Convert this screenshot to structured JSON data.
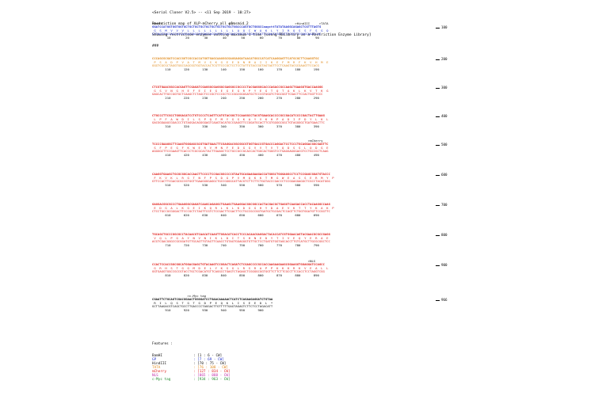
{
  "header": {
    "lines": [
      "<Serial Cloner V2.5> -- <11 Sep 2019 - 10:27>",
      "Restriction map of XLP-mCherry_all plasmid_2",
      "Showing restriction enzymes cutting maximum 1 time [using RELibrary as a Restriction Enzyme Library]",
      "###"
    ]
  },
  "blocks": [
    {
      "labels": ">BamHI                                   >GP                                 >HindIII     >TATA",
      "top": "GGATCCATGGTGGTGGTGCTGCTGCTGCTGCTGCTGCTGCTGCTGGCCCAGTGCTGGGCCaagcttTATATAAGGCAGAGCTCGTTTAGTG",
      "aa": " G  S  M  V  V  V  L  L  L  L  L  L  L  L  L  A  Q  C  W  A  K  L  Y  I  R  Q  S  S  F  S  G  Q",
      "bottom": "CCTAGGTACCACCACCACGACGACGACGACGACGACGACGACGACCGGGTCACGACCCGTTCGAATATATATTCCGTCTCGAGCAAATCAC",
      "ticks": "        10        20        30        40        50        60        70        80        90",
      "end": "100",
      "colors": [
        "c-blue",
        "c-orange"
      ]
    },
    {
      "labels": "",
      "top": "CCCAGCGCGATCCACCGGTCGCCACCATGGTGAGCAAGGGCGAGGAGGATAACATGGCCATCATCAAGGAGTTCATGCGCTTCAAGGTGC",
      "aa": " P  S  A  D  P  V  A  T  M  V  S  K  G  E  E  D  N  M  A  I  I  K  E  F  M  R  F  K  V  H  M  E",
      "bottom": "GGGTCGCGCTAGGTGGCCAGCGGTGGTACCACTCGTTCCCGCTCCTCCTATTGTACCGGTAGTAGTTCCTCAAGTACGCGAAGTTCCACG",
      "ticks": "       110       120       130       140       150       160       170       180       190",
      "end": "200",
      "colors": [
        "c-orange",
        "c-red"
      ]
    },
    {
      "labels": "",
      "top": "CTCGTGAACGGCCACGAGTTCGAGATCGAGGGCGAGGGCGAGGGCCGCCCCTACGAGGGCACCCAGACCGCCAAGCTGAAGGTGACCAAGGG",
      "aa": " G  S  V  N  G  H  E  F  E  I  E  G  E  G  E  G  R  P  Y  E  G  T  Q  T  A  K  L  K  V  T  K  G",
      "bottom": "GAGCACTTGCCGGTGCTCAAGCTCTAGCTCCCGCTCCCGCTCCCGGCGGGGATGCTCCCGTGGGTCTGGCGGTTCGACTTCCACTGGTTCCC",
      "ticks": "       210       220       230       240       250       260       270       280       290",
      "end": "300",
      "colors": [
        "c-red"
      ]
    },
    {
      "labels": "",
      "top": "CTGCCCTTCGCCTGGGACATCCTGTCCCCTCAGTTCATGTACGGCTCCAAGGCCTACGTGAAGCACCCCGCCGACATCCCCGACTACTTGAAG",
      "aa": " L  P  F  A  W  D  I  L  S  P  Q  F  M  Y  G  S  K  A  Y  V  K  H  P  A  D  I  P  D  Y  L  K  L",
      "bottom": "GACGGGAAGCGGACCCTGTAGGACAGGGGAGTCAAGTACATGCCGAGGTTCCGGATGCACTTCGTGGGGCGGCTGTAGGGGCTGATGAACTTC",
      "ticks": "       310       320       330       340       350       360       370       380       390",
      "end": "400",
      "colors": [
        "c-red"
      ]
    },
    {
      "labels": "                                                                                    >mCherry",
      "top": "TCCCCGAAGGCTTCAAGTGGGAGCGCGTGATGAACTTCGAGGACGGCGGCGTGGTGACCGTGACCCAGGACTCCTCCCTGCAGGACGGCGAGTTC",
      "aa": " S  F  P  E  G  F  K  W  E  R  V  M  N  F  E  D  G  G  V  V  T  V  T  Q  D  S  S  L  Q  D  G  E",
      "bottom": "AGGGGCTTCCGAAGTTCACCCTCGCGCACTACTTGAAGCTCCTGCCGCCGCACCACTGGCACTGGGTCCTGAGGAGGGACGTCCTGCCGCTCAAG",
      "ticks": "       410       420       430       440       450       460       470       480       490",
      "end": "500",
      "colors": [
        "c-red"
      ]
    },
    {
      "labels": "",
      "top": "CAAGGTGAAGCTGCGCGGCACCAACTTCCCCTCCGACGGCCCCGTAATGCAGAAGAAGACCATGGGCTGGGAGGCCTCCTCCGAGCGGATGTACCC",
      "aa": " F  K  V  K  L  R  G  T  N  F  P  S  D  G  P  V  M  Q  K  K  T  M  G  W  E  A  S  S  E  R  M  Y  P",
      "bottom": "GTTCCACTTCGACGCGCCGTGGTTGAAGGGGAGGCTGCCGGGGCATTACGTCTTCTTCTGGTACCCGACCCTCCGGAGGAGGCTCGCCTACATGGG",
      "ticks": "       510       520       530       540       550       560       570       580       590",
      "end": "600",
      "colors": [
        "c-red"
      ]
    },
    {
      "labels": "",
      "top": "GAGGACGGCGCCCTGAAGGGCGAGATCAAGCAGAGGCTGAAGCTGAAGGACGGCGGCCACTACGACGCTGAGGTCAAGACCACCTACAAGGCCAAG",
      "aa": " E  D  G  A  L  K  G  E  I  K  Q  R  L  K  L  K  D  G  G  H  Y  D  A  E  V  K  T  T  Y  K  A  K  P",
      "bottom": "CTCCTGCCGCGGGACTTCCCGCTCTAGTTCGTCTCCGACTTCGACTTCCTGCCGCCGGTGATGCTGCGACTCCAGTTCTGGTGGATGTTCCGGTTC",
      "ticks": "       610       620       630       640       650       660       670       680       690",
      "end": "700",
      "colors": [
        "c-red"
      ]
    },
    {
      "labels": "",
      "top": "TGCAGCTGCCCGGCGCCTACAACGTCAACATCAAGTTGGACATCACCTCCCACAACGAGGACTACACCATCGTGGAACAGTACGAACGCGCCGAGG",
      "aa": " V  Q  L  P  G  A  Y  N  V  N  I  K  L  D  I  T  S  H  N  E  D  Y  T  I  V  E  Q  Y  E  R  A  E",
      "bottom": "ACGTCGACGGGCCGCGGATGTTGCAGTTGTAGTTCAACCTGTAGTGGAGGGTGTTGCTCCTGATGTGGTAGCACCTTGTCATGCTTGCGCGGCTCC",
      "ticks": "       710       720       730       740       750       760       770       780       790",
      "end": "800",
      "colors": [
        "c-red"
      ]
    },
    {
      "labels": "                                                                                    >NLS",
      "top": "CCACTCCACCGGCGGCATGGACGAGCTGTACAAGTCCGGACTCAGATCTCGAGCCCCGCCACCAAGAAGAAGCGGAAGGTGGAGGATCCAGCC",
      "aa": " G  R  H  S  T  G  G  M  D  E  L  Y  K  S  G  L  R  S  R  A  P  P  K  K  K  R  K  V  E  A  L  L",
      "bottom": "GGTGAGGTGGCCGCCGTACCTGCTCGACATGTTCAGGCCTGAGTCTAGAGCTCGGGGCGGTGGTTCTTCTTCGCCTTCCACCTCCTAGGTCGG",
      "ticks": "       810       820       830       840       850       860       870       880       890",
      "end": "900",
      "colors": [
        "c-red",
        "c-magenta"
      ]
    },
    {
      "labels": "                   >c-Myc tag",
      "top": "CGAATTCTGCAGTCGACGGAACTGGGGATCCTGAACAAAAACTCATCTCAGAAGAGGATCTGTAA",
      "aa": " R  I  L  Q  S  T  G  T  G  D  P  E  Q  K  L  I  S  E  E  D  L  *",
      "bottom": "GCTTAAGACGTCAGCTGCCTTGACCCCTAGGACTTGTTTTTGAGTAGAGTCTTCTCCTAGACATT",
      "ticks": "       910       920       930       940       950       960",
      "end": "966",
      "colors": [
        "c-black",
        "c-green"
      ]
    }
  ],
  "features": {
    "title": "Features :",
    "items": [
      {
        "name": "BamHI",
        "range": ": [1 : 6 - CW]",
        "color": "#111111"
      },
      {
        "name": "GP",
        "range": ": [7 : 69 - CW]",
        "color": "#2233cc"
      },
      {
        "name": "HindIII",
        "range": ": [70 : 75 - CW]",
        "color": "#111111"
      },
      {
        "name": "TATA",
        "range": ": [76 : 108 - CW]",
        "color": "#e08a1c"
      },
      {
        "name": "mCherry",
        "range": ": [127 : 834 - CW]",
        "color": "#e0201c"
      },
      {
        "name": "NLS",
        "range": ": [865 : 888 - CW]",
        "color": "#c02aa8"
      },
      {
        "name": "c-Myc tag",
        "range": ": [934 : 963 - CW]",
        "color": "#1f8a2c"
      }
    ]
  }
}
